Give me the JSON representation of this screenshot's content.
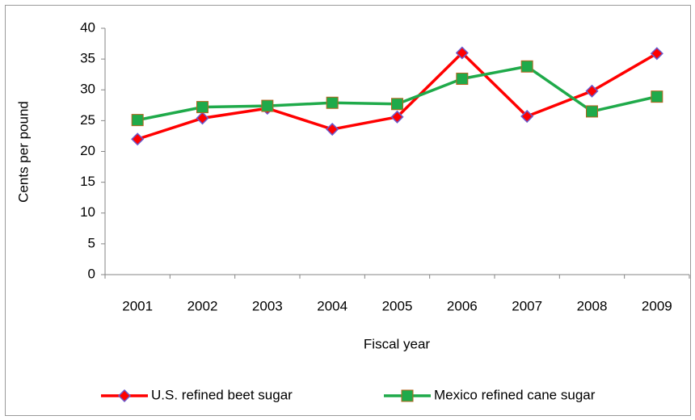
{
  "chart_data": {
    "type": "line",
    "x_label": "Fiscal year",
    "y_label": "Cents per pound",
    "categories": [
      "2001",
      "2002",
      "2003",
      "2004",
      "2005",
      "2006",
      "2007",
      "2008",
      "2009"
    ],
    "series": [
      {
        "name": "U.S. refined beet sugar",
        "color": "#ff0000",
        "marker": "diamond",
        "marker_color": "#6a5acd",
        "values": [
          22.0,
          25.4,
          27.0,
          23.6,
          25.6,
          36.0,
          25.7,
          29.8,
          35.9
        ]
      },
      {
        "name": "Mexico refined cane sugar",
        "color": "#1faa4a",
        "marker": "square",
        "marker_color": "#b5651d",
        "values": [
          25.1,
          27.2,
          27.4,
          27.9,
          27.7,
          31.8,
          33.8,
          26.5,
          28.9
        ]
      }
    ],
    "ylim": [
      0,
      40
    ],
    "yticks": [
      0,
      5,
      10,
      15,
      20,
      25,
      30,
      35,
      40
    ],
    "grid": false,
    "legend": "bottom"
  }
}
